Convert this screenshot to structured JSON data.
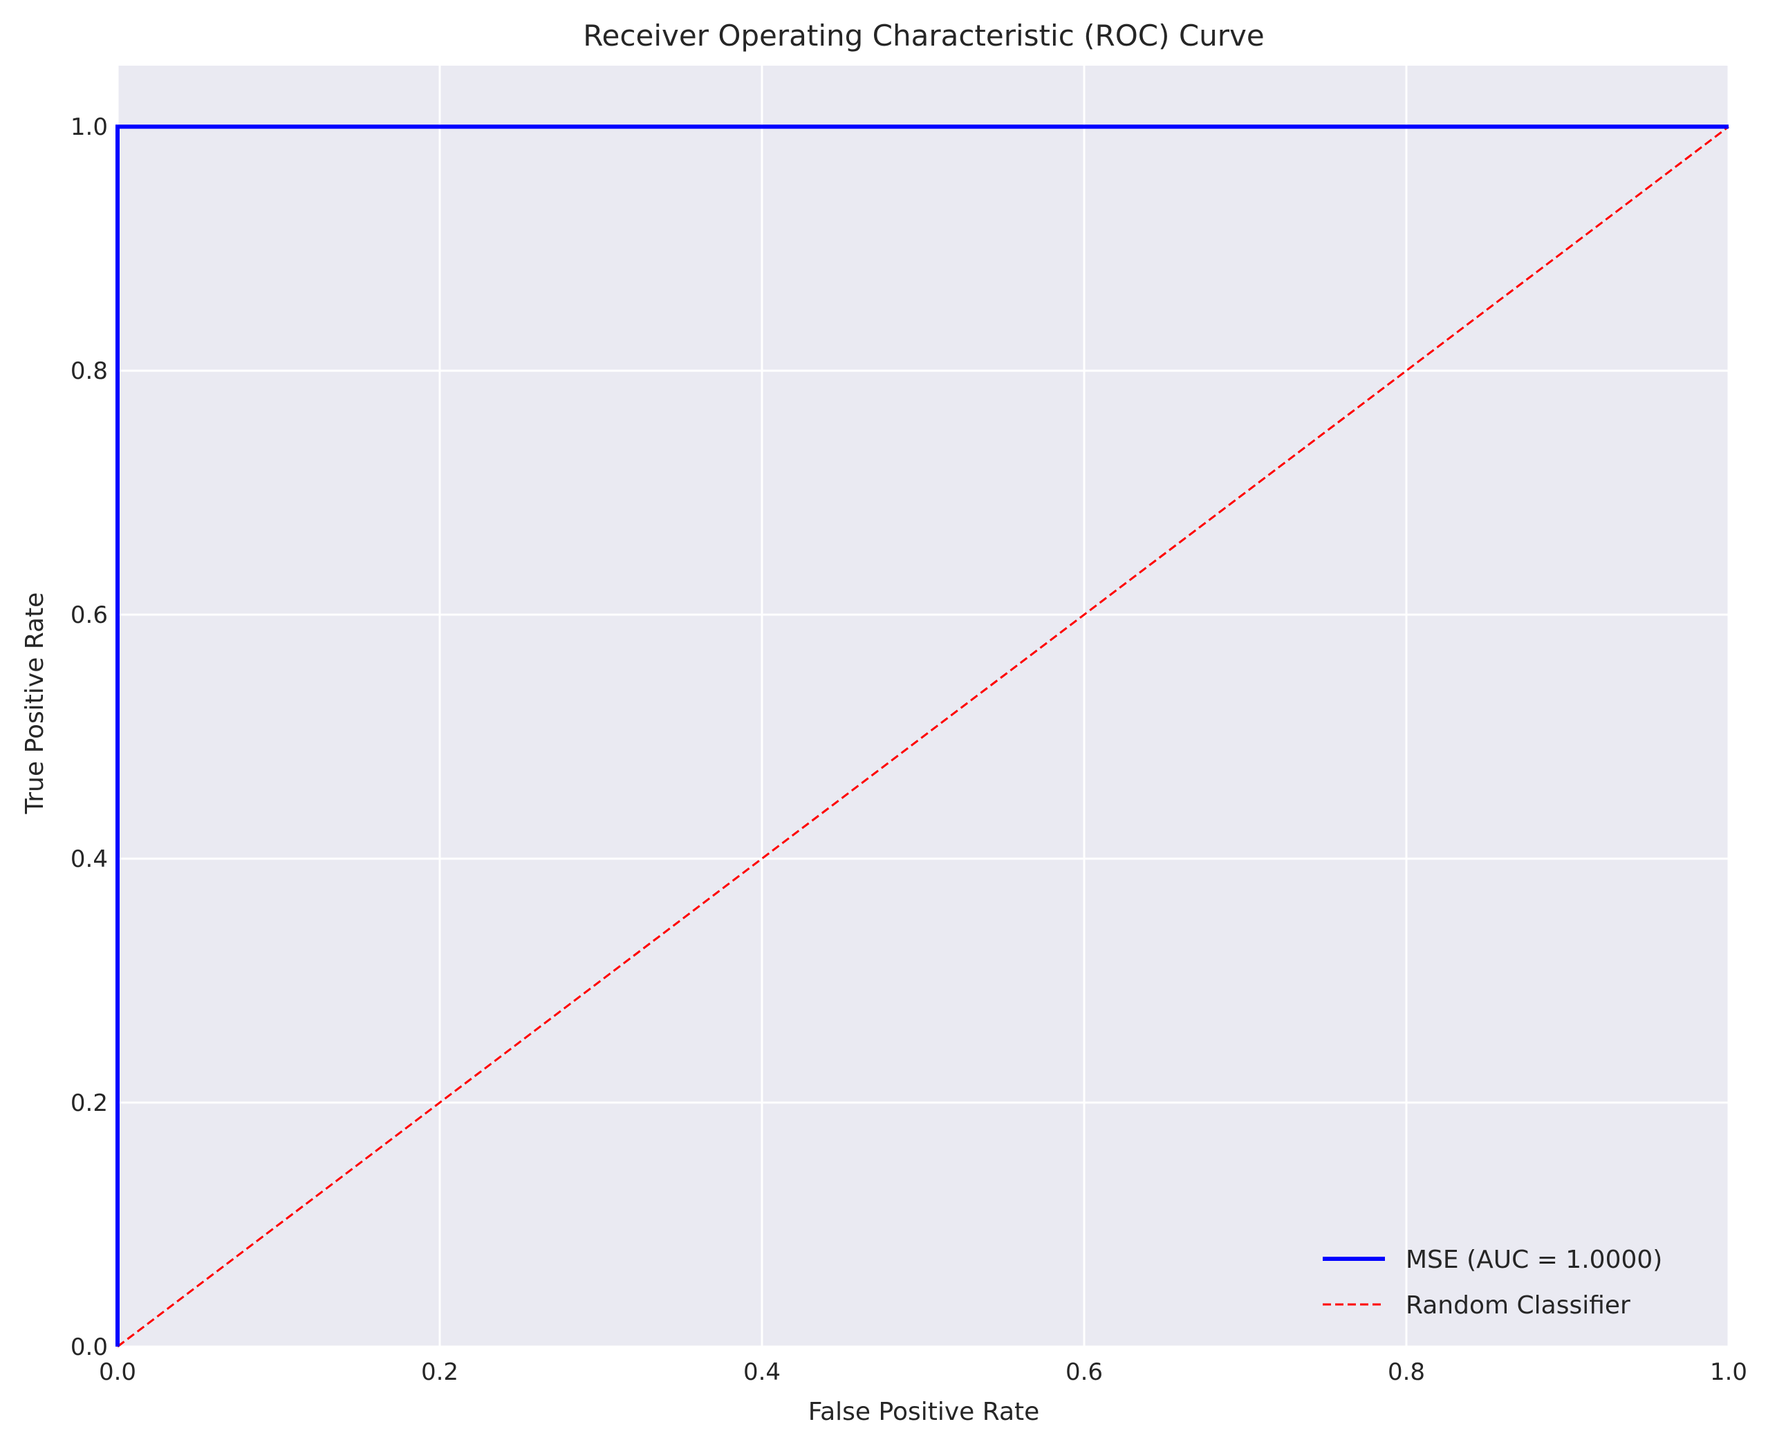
{
  "chart_data": {
    "type": "line",
    "title": "Receiver Operating Characteristic (ROC) Curve",
    "xlabel": "False Positive Rate",
    "ylabel": "True Positive Rate",
    "xlim": [
      0.0,
      1.0
    ],
    "ylim": [
      0.0,
      1.05
    ],
    "xticks": [
      "0.0",
      "0.2",
      "0.4",
      "0.6",
      "0.8",
      "1.0"
    ],
    "yticks": [
      "0.0",
      "0.2",
      "0.4",
      "0.6",
      "0.8",
      "1.0"
    ],
    "grid": true,
    "legend_position": "bottom-right",
    "background_color": "#eaeaf2",
    "series": [
      {
        "name": "MSE (AUC = 1.0000)",
        "color": "#0000ff",
        "style": "solid",
        "x": [
          0.0,
          0.0,
          1.0
        ],
        "y": [
          0.0,
          1.0,
          1.0
        ]
      },
      {
        "name": "Random Classifier",
        "color": "#ff0000",
        "style": "dashed",
        "x": [
          0.0,
          1.0
        ],
        "y": [
          0.0,
          1.0
        ]
      }
    ]
  }
}
